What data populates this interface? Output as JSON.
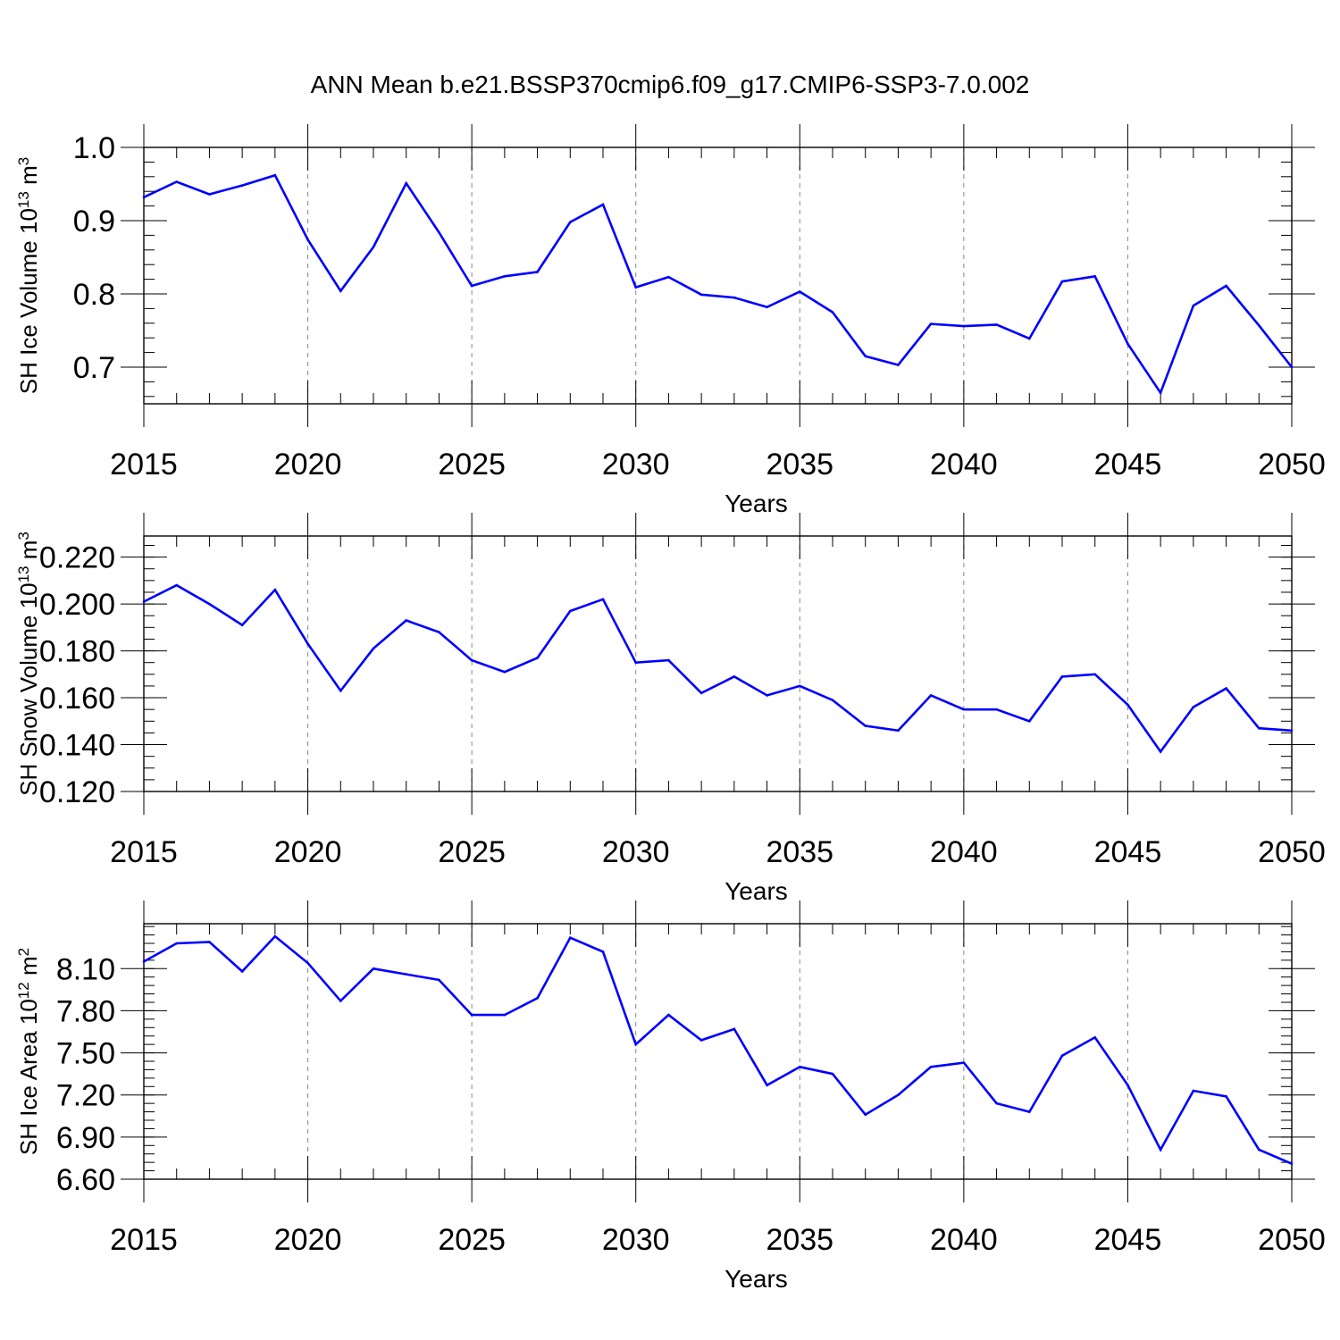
{
  "title": "ANN Mean b.e21.BSSP370cmip6.f09_g17.CMIP6-SSP3-7.0.002",
  "colors": {
    "series": "#0000ff",
    "axes": "#000000",
    "grid": "#888888"
  },
  "chart_data": [
    {
      "type": "line",
      "xlabel": "Years",
      "ylabel_main": "SH Ice Volume 10",
      "ylabel_exp": "13",
      "ylabel_unit": " m",
      "ylabel_unit_exp": "3",
      "xlim": [
        2015,
        2050
      ],
      "ylim": [
        0.65,
        1.0
      ],
      "xticks": [
        "2015",
        "2020",
        "2025",
        "2030",
        "2035",
        "2040",
        "2045",
        "2050"
      ],
      "yticks": [
        0.7,
        0.8,
        0.9,
        1.0
      ],
      "ytick_labels": [
        "0.7",
        "0.8",
        "0.9",
        "1.0"
      ],
      "ytick_minor_step": 0.02,
      "grid": "vertical dashed at major x ticks",
      "x": [
        2015,
        2016,
        2017,
        2018,
        2019,
        2020,
        2021,
        2022,
        2023,
        2024,
        2025,
        2026,
        2027,
        2028,
        2029,
        2030,
        2031,
        2032,
        2033,
        2034,
        2035,
        2036,
        2037,
        2038,
        2039,
        2040,
        2041,
        2042,
        2043,
        2044,
        2045,
        2046,
        2047,
        2048,
        2049,
        2050
      ],
      "values": [
        0.932,
        0.953,
        0.936,
        0.948,
        0.962,
        0.874,
        0.804,
        0.864,
        0.951,
        0.884,
        0.811,
        0.824,
        0.83,
        0.898,
        0.922,
        0.809,
        0.823,
        0.799,
        0.795,
        0.782,
        0.803,
        0.775,
        0.715,
        0.703,
        0.759,
        0.756,
        0.758,
        0.739,
        0.817,
        0.824,
        0.732,
        0.665,
        0.784,
        0.811,
        0.757,
        0.7
      ]
    },
    {
      "type": "line",
      "xlabel": "Years",
      "ylabel_main": "SH Snow Volume 10",
      "ylabel_exp": "13",
      "ylabel_unit": " m",
      "ylabel_unit_exp": "3",
      "xlim": [
        2015,
        2050
      ],
      "ylim": [
        0.12,
        0.229
      ],
      "xticks": [
        "2015",
        "2020",
        "2025",
        "2030",
        "2035",
        "2040",
        "2045",
        "2050"
      ],
      "yticks": [
        0.12,
        0.14,
        0.16,
        0.18,
        0.2,
        0.22
      ],
      "ytick_labels": [
        "0.120",
        "0.140",
        "0.160",
        "0.180",
        "0.200",
        "0.220"
      ],
      "ytick_minor_step": 0.005,
      "grid": "vertical dashed at major x ticks",
      "x": [
        2015,
        2016,
        2017,
        2018,
        2019,
        2020,
        2021,
        2022,
        2023,
        2024,
        2025,
        2026,
        2027,
        2028,
        2029,
        2030,
        2031,
        2032,
        2033,
        2034,
        2035,
        2036,
        2037,
        2038,
        2039,
        2040,
        2041,
        2042,
        2043,
        2044,
        2045,
        2046,
        2047,
        2048,
        2049,
        2050
      ],
      "values": [
        0.201,
        0.208,
        0.2,
        0.191,
        0.206,
        0.183,
        0.163,
        0.181,
        0.193,
        0.188,
        0.176,
        0.171,
        0.177,
        0.197,
        0.202,
        0.175,
        0.176,
        0.162,
        0.169,
        0.161,
        0.165,
        0.159,
        0.148,
        0.146,
        0.161,
        0.155,
        0.155,
        0.15,
        0.169,
        0.17,
        0.157,
        0.137,
        0.156,
        0.164,
        0.147,
        0.146
      ]
    },
    {
      "type": "line",
      "xlabel": "Years",
      "ylabel_main": "SH Ice Area 10",
      "ylabel_exp": "12",
      "ylabel_unit": " m",
      "ylabel_unit_exp": "2",
      "xlim": [
        2015,
        2050
      ],
      "ylim": [
        6.6,
        8.42
      ],
      "xticks": [
        "2015",
        "2020",
        "2025",
        "2030",
        "2035",
        "2040",
        "2045",
        "2050"
      ],
      "yticks": [
        6.6,
        6.9,
        7.2,
        7.5,
        7.8,
        8.1
      ],
      "ytick_labels": [
        "6.60",
        "6.90",
        "7.20",
        "7.50",
        "7.80",
        "8.10"
      ],
      "ytick_minor_step": 0.06,
      "grid": "vertical dashed at major x ticks",
      "x": [
        2015,
        2016,
        2017,
        2018,
        2019,
        2020,
        2021,
        2022,
        2023,
        2024,
        2025,
        2026,
        2027,
        2028,
        2029,
        2030,
        2031,
        2032,
        2033,
        2034,
        2035,
        2036,
        2037,
        2038,
        2039,
        2040,
        2041,
        2042,
        2043,
        2044,
        2045,
        2046,
        2047,
        2048,
        2049,
        2050
      ],
      "values": [
        8.15,
        8.28,
        8.29,
        8.08,
        8.33,
        8.14,
        7.87,
        8.1,
        8.06,
        8.02,
        7.77,
        7.77,
        7.89,
        8.32,
        8.22,
        7.56,
        7.77,
        7.59,
        7.67,
        7.27,
        7.4,
        7.35,
        7.06,
        7.2,
        7.4,
        7.43,
        7.14,
        7.08,
        7.48,
        7.61,
        7.27,
        6.81,
        7.23,
        7.19,
        6.81,
        6.71
      ]
    }
  ]
}
